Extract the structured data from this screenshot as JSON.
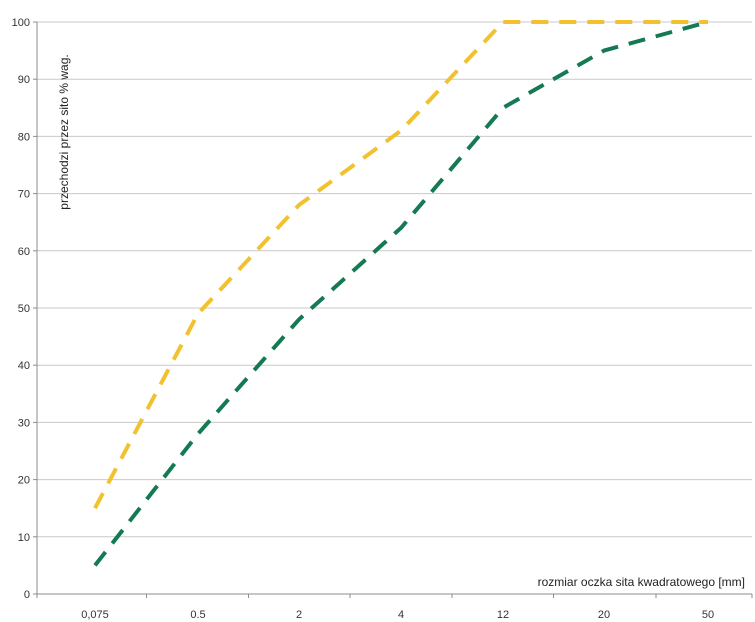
{
  "chart_data": {
    "type": "line",
    "title": "",
    "xlabel": "rozmiar oczka sita kwadratowego [mm]",
    "ylabel": "przechodzi przez sito % wag.",
    "x_scale": "categorical",
    "categories": [
      "0,075",
      "0.5",
      "2",
      "4",
      "12",
      "20",
      "50"
    ],
    "ylim": [
      0,
      100
    ],
    "yticks": [
      0,
      10,
      20,
      30,
      40,
      50,
      60,
      70,
      80,
      90,
      100
    ],
    "grid": true,
    "legend": "none",
    "series": [
      {
        "color": "#f2c12e",
        "dash": "dashed",
        "values": [
          15,
          49,
          68,
          81,
          100,
          100,
          100
        ]
      },
      {
        "color": "#147a52",
        "dash": "dashed",
        "values": [
          5,
          28,
          48,
          64,
          85,
          95,
          100
        ]
      }
    ]
  }
}
